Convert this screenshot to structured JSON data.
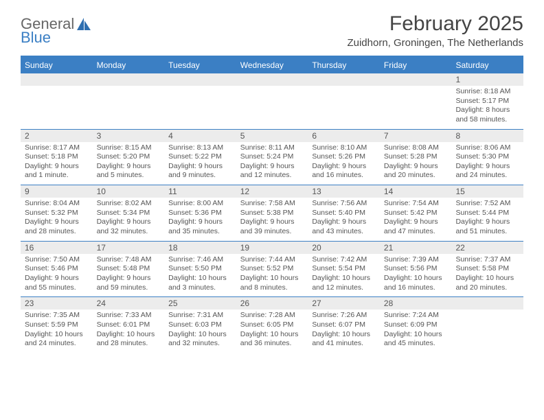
{
  "logo": {
    "general": "General",
    "blue": "Blue",
    "icon_color": "#2f6fb0"
  },
  "header": {
    "month_title": "February 2025",
    "location": "Zuidhorn, Groningen, The Netherlands"
  },
  "colors": {
    "accent": "#3b7fc4",
    "date_bar_bg": "#ececec",
    "text": "#555555"
  },
  "days_of_week": [
    "Sunday",
    "Monday",
    "Tuesday",
    "Wednesday",
    "Thursday",
    "Friday",
    "Saturday"
  ],
  "weeks": [
    [
      {
        "date": "",
        "sunrise": "",
        "sunset": "",
        "daylight": ""
      },
      {
        "date": "",
        "sunrise": "",
        "sunset": "",
        "daylight": ""
      },
      {
        "date": "",
        "sunrise": "",
        "sunset": "",
        "daylight": ""
      },
      {
        "date": "",
        "sunrise": "",
        "sunset": "",
        "daylight": ""
      },
      {
        "date": "",
        "sunrise": "",
        "sunset": "",
        "daylight": ""
      },
      {
        "date": "",
        "sunrise": "",
        "sunset": "",
        "daylight": ""
      },
      {
        "date": "1",
        "sunrise": "Sunrise: 8:18 AM",
        "sunset": "Sunset: 5:17 PM",
        "daylight": "Daylight: 8 hours and 58 minutes."
      }
    ],
    [
      {
        "date": "2",
        "sunrise": "Sunrise: 8:17 AM",
        "sunset": "Sunset: 5:18 PM",
        "daylight": "Daylight: 9 hours and 1 minute."
      },
      {
        "date": "3",
        "sunrise": "Sunrise: 8:15 AM",
        "sunset": "Sunset: 5:20 PM",
        "daylight": "Daylight: 9 hours and 5 minutes."
      },
      {
        "date": "4",
        "sunrise": "Sunrise: 8:13 AM",
        "sunset": "Sunset: 5:22 PM",
        "daylight": "Daylight: 9 hours and 9 minutes."
      },
      {
        "date": "5",
        "sunrise": "Sunrise: 8:11 AM",
        "sunset": "Sunset: 5:24 PM",
        "daylight": "Daylight: 9 hours and 12 minutes."
      },
      {
        "date": "6",
        "sunrise": "Sunrise: 8:10 AM",
        "sunset": "Sunset: 5:26 PM",
        "daylight": "Daylight: 9 hours and 16 minutes."
      },
      {
        "date": "7",
        "sunrise": "Sunrise: 8:08 AM",
        "sunset": "Sunset: 5:28 PM",
        "daylight": "Daylight: 9 hours and 20 minutes."
      },
      {
        "date": "8",
        "sunrise": "Sunrise: 8:06 AM",
        "sunset": "Sunset: 5:30 PM",
        "daylight": "Daylight: 9 hours and 24 minutes."
      }
    ],
    [
      {
        "date": "9",
        "sunrise": "Sunrise: 8:04 AM",
        "sunset": "Sunset: 5:32 PM",
        "daylight": "Daylight: 9 hours and 28 minutes."
      },
      {
        "date": "10",
        "sunrise": "Sunrise: 8:02 AM",
        "sunset": "Sunset: 5:34 PM",
        "daylight": "Daylight: 9 hours and 32 minutes."
      },
      {
        "date": "11",
        "sunrise": "Sunrise: 8:00 AM",
        "sunset": "Sunset: 5:36 PM",
        "daylight": "Daylight: 9 hours and 35 minutes."
      },
      {
        "date": "12",
        "sunrise": "Sunrise: 7:58 AM",
        "sunset": "Sunset: 5:38 PM",
        "daylight": "Daylight: 9 hours and 39 minutes."
      },
      {
        "date": "13",
        "sunrise": "Sunrise: 7:56 AM",
        "sunset": "Sunset: 5:40 PM",
        "daylight": "Daylight: 9 hours and 43 minutes."
      },
      {
        "date": "14",
        "sunrise": "Sunrise: 7:54 AM",
        "sunset": "Sunset: 5:42 PM",
        "daylight": "Daylight: 9 hours and 47 minutes."
      },
      {
        "date": "15",
        "sunrise": "Sunrise: 7:52 AM",
        "sunset": "Sunset: 5:44 PM",
        "daylight": "Daylight: 9 hours and 51 minutes."
      }
    ],
    [
      {
        "date": "16",
        "sunrise": "Sunrise: 7:50 AM",
        "sunset": "Sunset: 5:46 PM",
        "daylight": "Daylight: 9 hours and 55 minutes."
      },
      {
        "date": "17",
        "sunrise": "Sunrise: 7:48 AM",
        "sunset": "Sunset: 5:48 PM",
        "daylight": "Daylight: 9 hours and 59 minutes."
      },
      {
        "date": "18",
        "sunrise": "Sunrise: 7:46 AM",
        "sunset": "Sunset: 5:50 PM",
        "daylight": "Daylight: 10 hours and 3 minutes."
      },
      {
        "date": "19",
        "sunrise": "Sunrise: 7:44 AM",
        "sunset": "Sunset: 5:52 PM",
        "daylight": "Daylight: 10 hours and 8 minutes."
      },
      {
        "date": "20",
        "sunrise": "Sunrise: 7:42 AM",
        "sunset": "Sunset: 5:54 PM",
        "daylight": "Daylight: 10 hours and 12 minutes."
      },
      {
        "date": "21",
        "sunrise": "Sunrise: 7:39 AM",
        "sunset": "Sunset: 5:56 PM",
        "daylight": "Daylight: 10 hours and 16 minutes."
      },
      {
        "date": "22",
        "sunrise": "Sunrise: 7:37 AM",
        "sunset": "Sunset: 5:58 PM",
        "daylight": "Daylight: 10 hours and 20 minutes."
      }
    ],
    [
      {
        "date": "23",
        "sunrise": "Sunrise: 7:35 AM",
        "sunset": "Sunset: 5:59 PM",
        "daylight": "Daylight: 10 hours and 24 minutes."
      },
      {
        "date": "24",
        "sunrise": "Sunrise: 7:33 AM",
        "sunset": "Sunset: 6:01 PM",
        "daylight": "Daylight: 10 hours and 28 minutes."
      },
      {
        "date": "25",
        "sunrise": "Sunrise: 7:31 AM",
        "sunset": "Sunset: 6:03 PM",
        "daylight": "Daylight: 10 hours and 32 minutes."
      },
      {
        "date": "26",
        "sunrise": "Sunrise: 7:28 AM",
        "sunset": "Sunset: 6:05 PM",
        "daylight": "Daylight: 10 hours and 36 minutes."
      },
      {
        "date": "27",
        "sunrise": "Sunrise: 7:26 AM",
        "sunset": "Sunset: 6:07 PM",
        "daylight": "Daylight: 10 hours and 41 minutes."
      },
      {
        "date": "28",
        "sunrise": "Sunrise: 7:24 AM",
        "sunset": "Sunset: 6:09 PM",
        "daylight": "Daylight: 10 hours and 45 minutes."
      },
      {
        "date": "",
        "sunrise": "",
        "sunset": "",
        "daylight": ""
      }
    ]
  ]
}
